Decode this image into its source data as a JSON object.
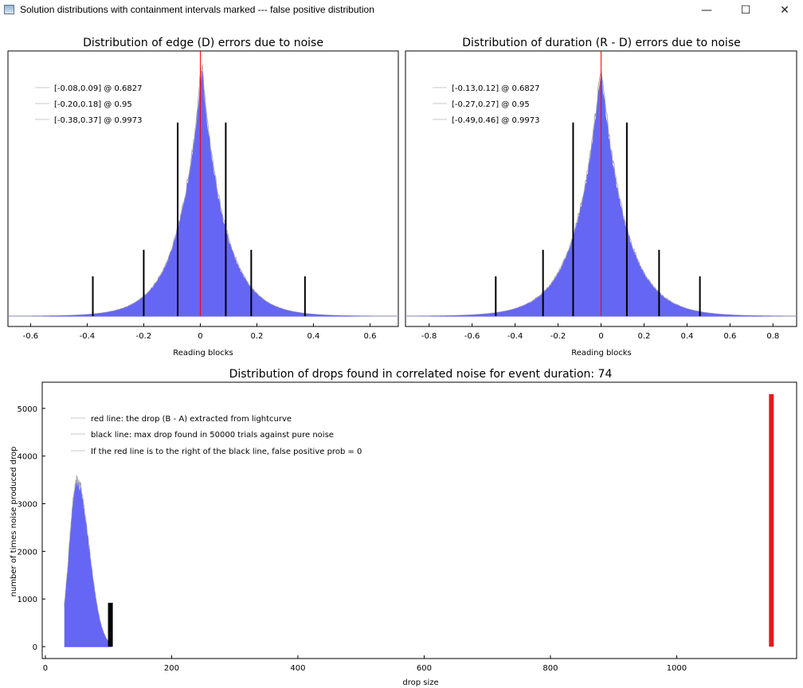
{
  "window": {
    "title": "Solution distributions with containment intervals marked --- false positive distribution",
    "minimize_glyph": "—",
    "maximize_glyph": "☐",
    "close_glyph": "✕"
  },
  "colors": {
    "histogram_fill": "#6666f5",
    "histogram_outline": "#a8a8a8",
    "red_line": "#ff0000",
    "drop_red": "#e31a1a",
    "baseline": "#4a4af5"
  },
  "chart_data": [
    {
      "type": "histogram",
      "title": "Distribution of edge (D) errors due to noise",
      "xlabel": "Reading blocks",
      "ylabel": "",
      "xlim": [
        -0.68,
        0.7
      ],
      "xticks": [
        "-0.6",
        "-0.4",
        "-0.2",
        "0",
        "0.2",
        "0.4",
        "0.6"
      ],
      "xtick_values": [
        -0.6,
        -0.4,
        -0.2,
        0,
        0.2,
        0.4,
        0.6
      ],
      "center": 0.005,
      "sigma": 0.085,
      "peak_fraction": 0.93,
      "red_line_x": 0,
      "legend_position": "top-left",
      "legend": [
        "[-0.08,0.09] @ 0.6827",
        "[-0.20,0.18] @ 0.95",
        "[-0.38,0.37] @ 0.9973"
      ],
      "intervals": [
        {
          "low": -0.08,
          "high": 0.09,
          "level": 0.6827,
          "height_fraction": 0.73
        },
        {
          "low": -0.2,
          "high": 0.18,
          "level": 0.95,
          "height_fraction": 0.25
        },
        {
          "low": -0.38,
          "high": 0.37,
          "level": 0.9973,
          "height_fraction": 0.15
        }
      ]
    },
    {
      "type": "histogram",
      "title": "Distribution of duration (R - D) errors due to noise",
      "xlabel": "Reading blocks",
      "ylabel": "",
      "xlim": [
        -0.91,
        0.91
      ],
      "xticks": [
        "-0.8",
        "-0.6",
        "-0.4",
        "-0.2",
        "0",
        "0.2",
        "0.4",
        "0.6",
        "0.8"
      ],
      "xtick_values": [
        -0.8,
        -0.6,
        -0.4,
        -0.2,
        0,
        0.2,
        0.4,
        0.6,
        0.8
      ],
      "center": 0.0,
      "sigma": 0.12,
      "peak_fraction": 0.93,
      "red_line_x": 0,
      "legend_position": "top-left",
      "legend": [
        "[-0.13,0.12] @ 0.6827",
        "[-0.27,0.27] @ 0.95",
        "[-0.49,0.46] @ 0.9973"
      ],
      "intervals": [
        {
          "low": -0.13,
          "high": 0.12,
          "level": 0.6827,
          "height_fraction": 0.73
        },
        {
          "low": -0.27,
          "high": 0.27,
          "level": 0.95,
          "height_fraction": 0.25
        },
        {
          "low": -0.49,
          "high": 0.46,
          "level": 0.9973,
          "height_fraction": 0.15
        }
      ]
    },
    {
      "type": "histogram",
      "title": "Distribution of drops found in correlated noise for event duration: 74",
      "xlabel": "drop size",
      "ylabel": "number of times noise produced drop",
      "xlim": [
        -5,
        1190
      ],
      "ylim": [
        -250,
        5550
      ],
      "xticks": [
        "0",
        "200",
        "400",
        "600",
        "800",
        "1000"
      ],
      "xtick_values": [
        0,
        200,
        400,
        600,
        800,
        1000
      ],
      "yticks": [
        "0",
        "1000",
        "2000",
        "3000",
        "4000",
        "5000"
      ],
      "ytick_values": [
        0,
        1000,
        2000,
        3000,
        4000,
        5000
      ],
      "distribution": {
        "start": 30,
        "peak_x": 50,
        "peak_y": 3450,
        "rise_width": 12,
        "fall_width": 19,
        "end": 105
      },
      "black_line": {
        "x": 103,
        "height": 920
      },
      "red_line": {
        "x": 1150,
        "height": 5300
      },
      "legend_position": "top-left",
      "legend": [
        "red line: the drop (B - A) extracted from lightcurve",
        "black line: max drop found in 50000 trials against pure noise",
        "If the red line is to the right of the black line, false positive prob = 0"
      ]
    }
  ]
}
